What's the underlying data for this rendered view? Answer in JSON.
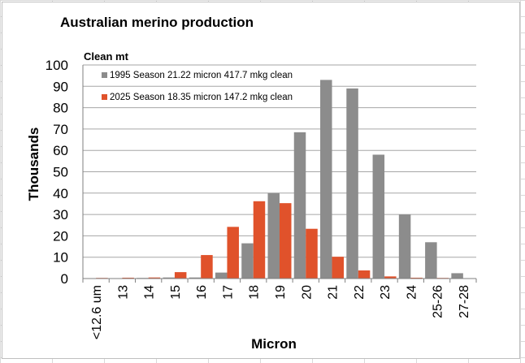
{
  "chart_data": {
    "type": "bar",
    "title": "Australian merino production",
    "unit_label": "Clean mt",
    "ylabel": "Thousands",
    "xlabel": "Micron",
    "ylim": [
      0,
      100
    ],
    "yticks": [
      0,
      10,
      20,
      30,
      40,
      50,
      60,
      70,
      80,
      90,
      100
    ],
    "categories": [
      "<12.6 um",
      "13",
      "14",
      "15",
      "16",
      "17",
      "18",
      "19",
      "20",
      "21",
      "22",
      "23",
      "24",
      "25-26",
      "27-28"
    ],
    "series": [
      {
        "name": "1995 Season 21.22 micron 417.7 mkg clean",
        "color": "#8c8c8c",
        "values": [
          0,
          0,
          0.3,
          0.5,
          0.5,
          2.8,
          16.5,
          40,
          68.5,
          93,
          89,
          58,
          30,
          17,
          2.5
        ]
      },
      {
        "name": "2025 Season 18.35 micron 147.2 mkg clean",
        "color": "#e0522b",
        "values": [
          0.3,
          0.4,
          0.5,
          3,
          11,
          24.2,
          36.2,
          35.3,
          23.3,
          10.2,
          3.8,
          1,
          0.4,
          0.3,
          0
        ]
      }
    ],
    "grid": true,
    "legend_position": "top-left"
  }
}
